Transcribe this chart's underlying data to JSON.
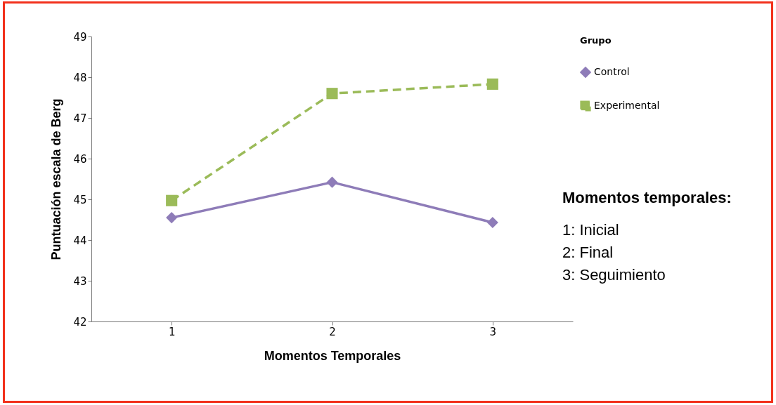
{
  "chart_data": {
    "type": "line",
    "xlabel": "Momentos Temporales",
    "ylabel": "Puntuación escala de Berg",
    "legend_title": "Grupo",
    "categories": [
      "1",
      "2",
      "3"
    ],
    "series": [
      {
        "name": "Control",
        "color": "#8e7cb8",
        "values": [
          44.55,
          45.42,
          44.43
        ],
        "marker": "diamond",
        "line_style": "solid"
      },
      {
        "name": "Experimental",
        "color": "#9bbb59",
        "values": [
          44.97,
          47.6,
          47.83
        ],
        "marker": "square",
        "line_style": "dashed"
      }
    ],
    "ylim": [
      42,
      49
    ],
    "yticks": [
      42,
      43,
      44,
      45,
      46,
      47,
      48,
      49
    ],
    "grid": false,
    "legend": "right",
    "annotations": [
      "Momentos temporales:",
      "1: Inicial",
      "2: Final",
      "3: Seguimiento"
    ]
  }
}
